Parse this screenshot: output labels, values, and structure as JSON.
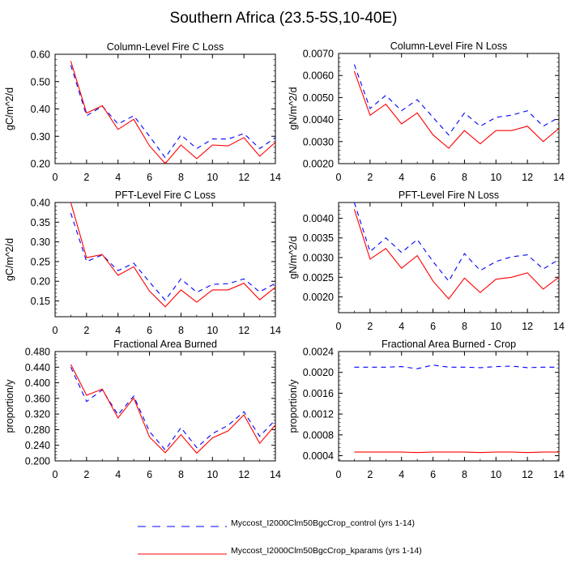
{
  "title": "Southern Africa (23.5-5S,10-40E)",
  "legend": [
    {
      "label": "Myccost_I2000Clm50BgcCrop_control (yrs 1-14)",
      "color": "#0000ff",
      "style": "dashed"
    },
    {
      "label": "Myccost_I2000Clm50BgcCrop_kparams (yrs 1-14)",
      "color": "#ff0000",
      "style": "solid"
    }
  ],
  "chart_data": [
    {
      "type": "line",
      "title": "Column-Level Fire C Loss",
      "xlabel": "",
      "ylabel": "gC/m^2/d",
      "xlim": [
        0,
        14
      ],
      "ylim": [
        0.2,
        0.6
      ],
      "xticks": [
        "0",
        "2",
        "4",
        "6",
        "8",
        "10",
        "12",
        "14"
      ],
      "yticks": [
        "0.20",
        "0.30",
        "0.40",
        "0.50",
        "0.60"
      ],
      "x": [
        1,
        2,
        3,
        4,
        5,
        6,
        7,
        8,
        9,
        10,
        11,
        12,
        13,
        14
      ],
      "series": [
        {
          "name": "Myccost_I2000Clm50BgcCrop_control (yrs 1-14)",
          "values": [
            0.56,
            0.375,
            0.41,
            0.345,
            0.375,
            0.3,
            0.222,
            0.305,
            0.255,
            0.29,
            0.29,
            0.31,
            0.255,
            0.295
          ]
        },
        {
          "name": "Myccost_I2000Clm50BgcCrop_kparams (yrs 1-14)",
          "values": [
            0.575,
            0.385,
            0.412,
            0.325,
            0.362,
            0.265,
            0.2,
            0.268,
            0.218,
            0.268,
            0.265,
            0.295,
            0.227,
            0.278
          ]
        }
      ]
    },
    {
      "type": "line",
      "title": "Column-Level Fire N Loss",
      "xlabel": "",
      "ylabel": "gN/m^2/d",
      "xlim": [
        0,
        14
      ],
      "ylim": [
        0.002,
        0.007
      ],
      "xticks": [
        "0",
        "2",
        "4",
        "6",
        "8",
        "10",
        "12",
        "14"
      ],
      "yticks": [
        "0.0020",
        "0.0030",
        "0.0040",
        "0.0050",
        "0.0060",
        "0.0070"
      ],
      "x": [
        1,
        2,
        3,
        4,
        5,
        6,
        7,
        8,
        9,
        10,
        11,
        12,
        13,
        14
      ],
      "series": [
        {
          "name": "Myccost_I2000Clm50BgcCrop_control (yrs 1-14)",
          "values": [
            0.0065,
            0.0045,
            0.0051,
            0.0044,
            0.0049,
            0.0041,
            0.0033,
            0.0043,
            0.0037,
            0.0041,
            0.0042,
            0.0044,
            0.0037,
            0.0041
          ]
        },
        {
          "name": "Myccost_I2000Clm50BgcCrop_kparams (yrs 1-14)",
          "values": [
            0.0062,
            0.0042,
            0.0047,
            0.0038,
            0.0043,
            0.0033,
            0.0027,
            0.0035,
            0.0029,
            0.0035,
            0.0035,
            0.0037,
            0.003,
            0.0036
          ]
        }
      ]
    },
    {
      "type": "line",
      "title": "PFT-Level Fire C Loss",
      "xlabel": "",
      "ylabel": "gC/m^2/d",
      "xlim": [
        0,
        14
      ],
      "ylim": [
        0.11,
        0.4
      ],
      "xticks": [
        "0",
        "2",
        "4",
        "6",
        "8",
        "10",
        "12",
        "14"
      ],
      "yticks": [
        "0.15",
        "0.20",
        "0.25",
        "0.30",
        "0.35",
        "0.40"
      ],
      "x": [
        1,
        2,
        3,
        4,
        5,
        6,
        7,
        8,
        9,
        10,
        11,
        12,
        13,
        14
      ],
      "series": [
        {
          "name": "Myccost_I2000Clm50BgcCrop_control (yrs 1-14)",
          "values": [
            0.373,
            0.25,
            0.267,
            0.227,
            0.246,
            0.198,
            0.152,
            0.206,
            0.172,
            0.192,
            0.194,
            0.206,
            0.173,
            0.195
          ]
        },
        {
          "name": "Myccost_I2000Clm50BgcCrop_kparams (yrs 1-14)",
          "values": [
            0.4,
            0.26,
            0.268,
            0.215,
            0.237,
            0.175,
            0.135,
            0.178,
            0.147,
            0.178,
            0.178,
            0.195,
            0.153,
            0.185
          ]
        }
      ]
    },
    {
      "type": "line",
      "title": "PFT-Level Fire N Loss",
      "xlabel": "",
      "ylabel": "gN/m^2/d",
      "xlim": [
        0,
        14
      ],
      "ylim": [
        0.0016,
        0.0044
      ],
      "xticks": [
        "0",
        "2",
        "4",
        "6",
        "8",
        "10",
        "12",
        "14"
      ],
      "yticks": [
        "0.0020",
        "0.0025",
        "0.0030",
        "0.0035",
        "0.0040"
      ],
      "x": [
        1,
        2,
        3,
        4,
        5,
        6,
        7,
        8,
        9,
        10,
        11,
        12,
        13,
        14
      ],
      "series": [
        {
          "name": "Myccost_I2000Clm50BgcCrop_control (yrs 1-14)",
          "values": [
            0.0044,
            0.00315,
            0.0035,
            0.00313,
            0.00346,
            0.0029,
            0.0024,
            0.0031,
            0.00267,
            0.0029,
            0.00302,
            0.00307,
            0.00271,
            0.00295
          ]
        },
        {
          "name": "Myccost_I2000Clm50BgcCrop_kparams (yrs 1-14)",
          "values": [
            0.00423,
            0.00296,
            0.00323,
            0.00273,
            0.00305,
            0.0024,
            0.00195,
            0.00248,
            0.00211,
            0.00245,
            0.0025,
            0.00261,
            0.0022,
            0.0025
          ]
        }
      ]
    },
    {
      "type": "line",
      "title": "Fractional Area Burned",
      "xlabel": "",
      "ylabel": "proportion/y",
      "xlim": [
        0,
        14
      ],
      "ylim": [
        0.2,
        0.48
      ],
      "xticks": [
        "0",
        "2",
        "4",
        "6",
        "8",
        "10",
        "12",
        "14"
      ],
      "yticks": [
        "0.200",
        "0.240",
        "0.280",
        "0.320",
        "0.360",
        "0.400",
        "0.440",
        "0.480"
      ],
      "x": [
        1,
        2,
        3,
        4,
        5,
        6,
        7,
        8,
        9,
        10,
        11,
        12,
        13,
        14
      ],
      "series": [
        {
          "name": "Myccost_I2000Clm50BgcCrop_control (yrs 1-14)",
          "values": [
            0.44,
            0.352,
            0.382,
            0.318,
            0.366,
            0.275,
            0.228,
            0.285,
            0.234,
            0.27,
            0.291,
            0.326,
            0.263,
            0.305
          ]
        },
        {
          "name": "Myccost_I2000Clm50BgcCrop_kparams (yrs 1-14)",
          "values": [
            0.447,
            0.368,
            0.384,
            0.31,
            0.361,
            0.261,
            0.221,
            0.267,
            0.22,
            0.259,
            0.277,
            0.318,
            0.245,
            0.292
          ]
        }
      ]
    },
    {
      "type": "line",
      "title": "Fractional Area Burned - Crop",
      "xlabel": "",
      "ylabel": "proportion/y",
      "xlim": [
        0,
        14
      ],
      "ylim": [
        0.0003,
        0.0024
      ],
      "xticks": [
        "0",
        "2",
        "4",
        "6",
        "8",
        "10",
        "12",
        "14"
      ],
      "yticks": [
        "0.0004",
        "0.0008",
        "0.0012",
        "0.0016",
        "0.0020",
        "0.0024"
      ],
      "x": [
        1,
        2,
        3,
        4,
        5,
        6,
        7,
        8,
        9,
        10,
        11,
        12,
        13,
        14
      ],
      "series": [
        {
          "name": "Myccost_I2000Clm50BgcCrop_control (yrs 1-14)",
          "values": [
            0.0021,
            0.0021,
            0.0021,
            0.00211,
            0.00207,
            0.00214,
            0.0021,
            0.0021,
            0.00209,
            0.00211,
            0.00212,
            0.00209,
            0.0021,
            0.0021
          ]
        },
        {
          "name": "Myccost_I2000Clm50BgcCrop_kparams (yrs 1-14)",
          "values": [
            0.00047,
            0.00047,
            0.00047,
            0.00047,
            0.00046,
            0.00047,
            0.00047,
            0.00047,
            0.00046,
            0.00047,
            0.00047,
            0.00046,
            0.00047,
            0.00047
          ]
        }
      ]
    }
  ]
}
